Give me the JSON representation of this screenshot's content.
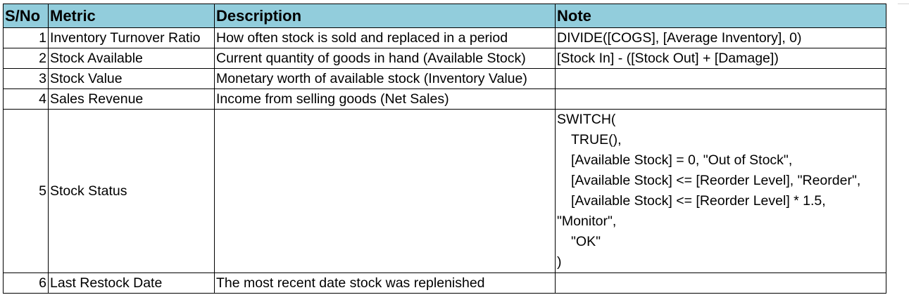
{
  "headers": [
    "S/No",
    "Metric",
    "Description",
    "Note"
  ],
  "rows": [
    {
      "sno": "1",
      "metric": "Inventory Turnover Ratio",
      "description": "How often stock is sold and replaced in a period",
      "note": "DIVIDE([COGS], [Average Inventory], 0)"
    },
    {
      "sno": "2",
      "metric": "Stock Available",
      "description": "Current quantity of goods in hand (Available Stock)",
      "note": "[Stock In] - ([Stock Out] + [Damage])"
    },
    {
      "sno": "3",
      "metric": "Stock Value",
      "description": "Monetary worth of available stock (Inventory Value)",
      "note": ""
    },
    {
      "sno": "4",
      "metric": "Sales Revenue",
      "description": "Income from selling goods (Net Sales)",
      "note": ""
    },
    {
      "sno": "5",
      "metric": "Stock Status",
      "description": "",
      "note_lines": [
        "SWITCH(",
        "TRUE(),",
        "[Available Stock] = 0, \"Out of Stock\",",
        "[Available Stock] <= [Reorder Level], \"Reorder\",",
        "[Available Stock] <= [Reorder Level] * 1.5,",
        "\"Monitor\",",
        "\"OK\"",
        ")"
      ]
    },
    {
      "sno": "6",
      "metric": "Last Restock Date",
      "description": "The most recent date stock was replenished",
      "note": ""
    }
  ]
}
